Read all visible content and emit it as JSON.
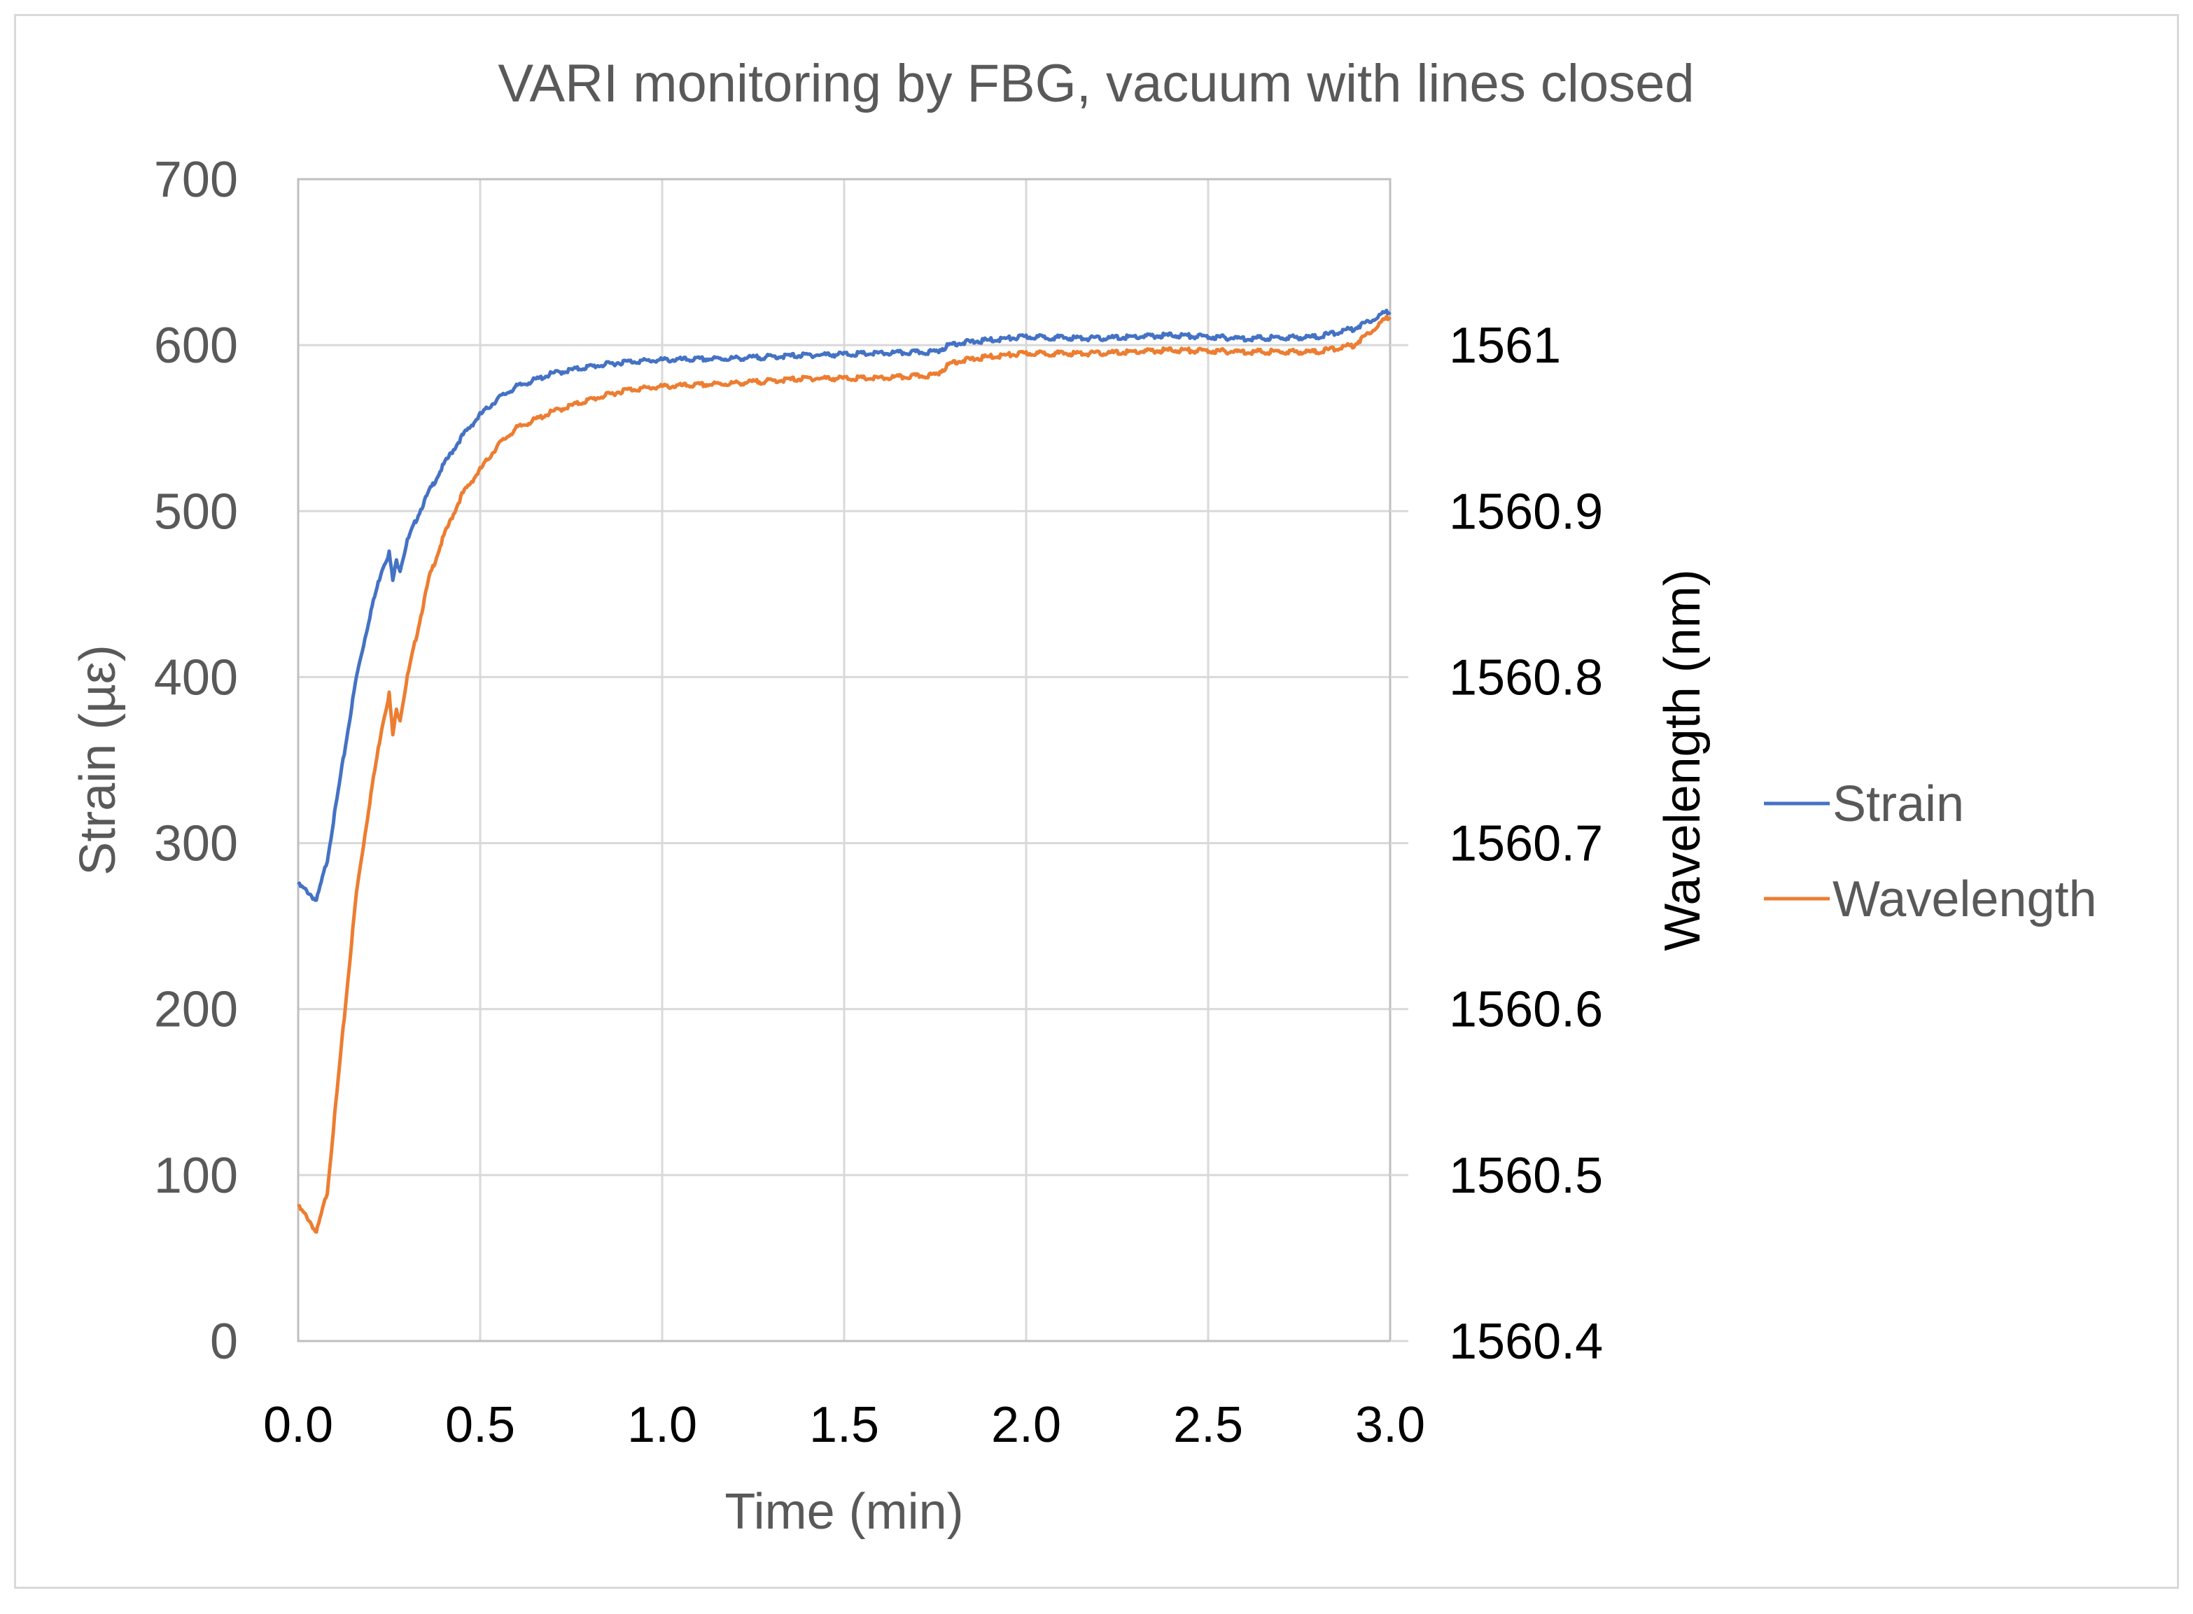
{
  "chart_data": {
    "type": "line",
    "title": "VARI monitoring by FBG, vacuum with lines closed",
    "xlabel": "Time (min)",
    "ylabel": "Strain (µε)",
    "y2label": "Wavelength (nm)",
    "xlim": [
      0,
      3
    ],
    "ylim": [
      0,
      700
    ],
    "y2lim": [
      1560.4,
      1561.1
    ],
    "x_ticks": [
      "0.0",
      "0.5",
      "1.0",
      "1.5",
      "2.0",
      "2.5",
      "3.0"
    ],
    "y_ticks": [
      "0",
      "100",
      "200",
      "300",
      "400",
      "500",
      "600",
      "700"
    ],
    "y2_ticks": [
      "1560.4",
      "1560.5",
      "1560.6",
      "1560.7",
      "1560.8",
      "1560.9",
      "1561"
    ],
    "grid": true,
    "legend_position": "right",
    "colors": {
      "strain": "#4472c4",
      "wavelength": "#ed7d31",
      "grid": "#d9d9d9",
      "frame": "#bfbfbf"
    },
    "series": [
      {
        "name": "Strain",
        "axis": "left",
        "x": [
          0,
          0.03,
          0.05,
          0.08,
          0.12,
          0.16,
          0.2,
          0.23,
          0.25,
          0.26,
          0.27,
          0.28,
          0.3,
          0.33,
          0.36,
          0.4,
          0.45,
          0.5,
          0.55,
          0.6,
          0.7,
          0.8,
          0.9,
          1.0,
          1.2,
          1.4,
          1.6,
          1.75,
          1.8,
          1.9,
          2.0,
          2.2,
          2.4,
          2.6,
          2.8,
          2.9,
          3.0
        ],
        "values": [
          275,
          270,
          265,
          290,
          345,
          400,
          440,
          465,
          475,
          458,
          470,
          465,
          482,
          498,
          512,
          528,
          545,
          558,
          568,
          575,
          583,
          587,
          590,
          591,
          592,
          594,
          595,
          596,
          601,
          603,
          605,
          604,
          606,
          604,
          605,
          610,
          621
        ]
      },
      {
        "name": "Wavelength",
        "axis": "right",
        "x": [
          0,
          0.03,
          0.05,
          0.08,
          0.12,
          0.16,
          0.2,
          0.23,
          0.25,
          0.26,
          0.27,
          0.28,
          0.3,
          0.33,
          0.36,
          0.4,
          0.45,
          0.5,
          0.55,
          0.6,
          0.7,
          0.8,
          0.9,
          1.0,
          1.2,
          1.4,
          1.6,
          1.75,
          1.8,
          1.9,
          2.0,
          2.2,
          2.4,
          2.6,
          2.8,
          2.9,
          3.0
        ],
        "values": [
          1560.481,
          1560.473,
          1560.465,
          1560.49,
          1560.58,
          1560.67,
          1560.73,
          1560.77,
          1560.79,
          1560.765,
          1560.78,
          1560.775,
          1560.8,
          1560.83,
          1560.86,
          1560.885,
          1560.91,
          1560.925,
          1560.94,
          1560.95,
          1560.96,
          1560.967,
          1560.973,
          1560.975,
          1560.977,
          1560.98,
          1560.98,
          1560.982,
          1560.99,
          1560.993,
          1560.995,
          1560.995,
          1560.997,
          1560.996,
          1560.996,
          1561.0,
          1561.018
        ]
      }
    ]
  }
}
